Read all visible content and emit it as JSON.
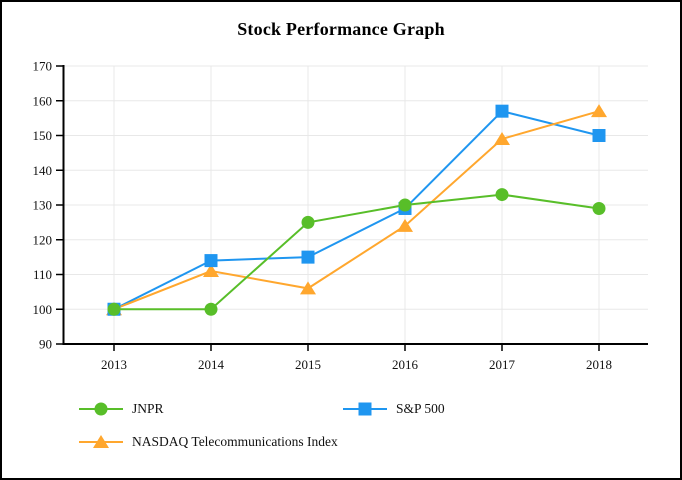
{
  "title": "Stock Performance Graph",
  "chart_data": {
    "type": "line",
    "title": "Stock Performance Graph",
    "categories": [
      "2013",
      "2014",
      "2015",
      "2016",
      "2017",
      "2018"
    ],
    "series": [
      {
        "name": "JNPR",
        "marker": "circle",
        "color": "#58BE29",
        "values": [
          100,
          100,
          125,
          130,
          133,
          129
        ]
      },
      {
        "name": "S&P 500",
        "marker": "square",
        "color": "#1F96F0",
        "values": [
          100,
          114,
          115,
          129,
          157,
          150
        ]
      },
      {
        "name": "NASDAQ Telecommunications Index",
        "marker": "triangle",
        "color": "#FFA72E",
        "values": [
          100,
          111,
          106,
          124,
          149,
          157
        ]
      }
    ],
    "ylim": [
      90,
      170
    ],
    "ytick_step": 10,
    "grid": true,
    "gridline_color": "#e8e8e8",
    "axis_color": "#000000",
    "legend_position": "bottom-left"
  }
}
